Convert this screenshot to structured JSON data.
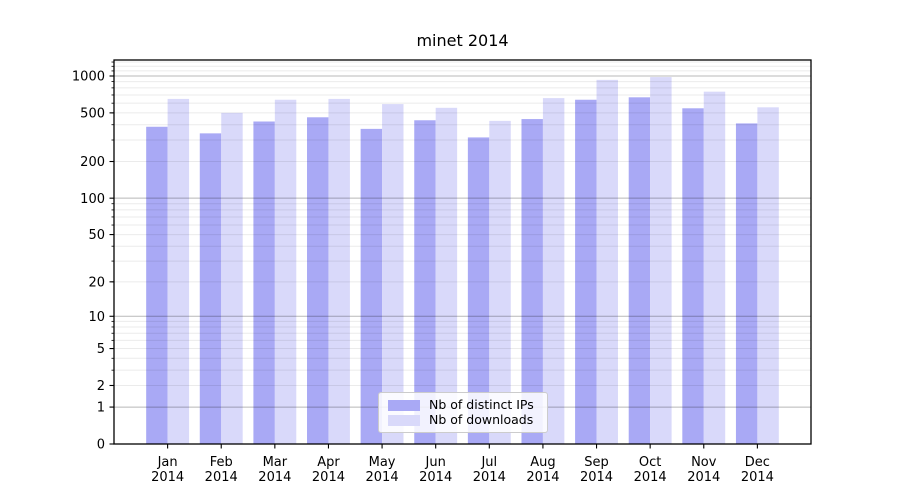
{
  "figure": {
    "background": "#ffffff"
  },
  "chart_data": {
    "type": "bar",
    "title": "minet 2014",
    "xlabel": "",
    "ylabel": "",
    "yscale": "log1p",
    "ylim": [
      0,
      1350
    ],
    "grid": {
      "major_values": [
        1,
        10,
        100,
        1000
      ],
      "minor_values": [
        2,
        3,
        4,
        5,
        6,
        7,
        8,
        9,
        20,
        30,
        40,
        50,
        60,
        70,
        80,
        90,
        200,
        300,
        400,
        500,
        600,
        700,
        800,
        900,
        1100,
        1200,
        1300
      ],
      "major_color": "rgba(0,0,0,0.28)",
      "minor_color": "rgba(0,0,0,0.08)"
    },
    "yticks": [
      1000,
      500,
      200,
      100,
      50,
      20,
      10,
      5,
      2,
      1,
      0
    ],
    "categories": [
      "Jan 2014",
      "Feb 2014",
      "Mar 2014",
      "Apr 2014",
      "May 2014",
      "Jun 2014",
      "Jul 2014",
      "Aug 2014",
      "Sep 2014",
      "Oct 2014",
      "Nov 2014",
      "Dec 2014"
    ],
    "series": [
      {
        "name": "Nb of distinct IPs",
        "color": "#a9a9f5",
        "values": [
          385,
          340,
          425,
          460,
          370,
          435,
          315,
          445,
          640,
          670,
          545,
          410
        ]
      },
      {
        "name": "Nb of downloads",
        "color": "#d9d9fa",
        "values": [
          650,
          500,
          640,
          650,
          590,
          550,
          430,
          660,
          930,
          980,
          745,
          555
        ]
      }
    ],
    "legend_position": "lower center"
  }
}
